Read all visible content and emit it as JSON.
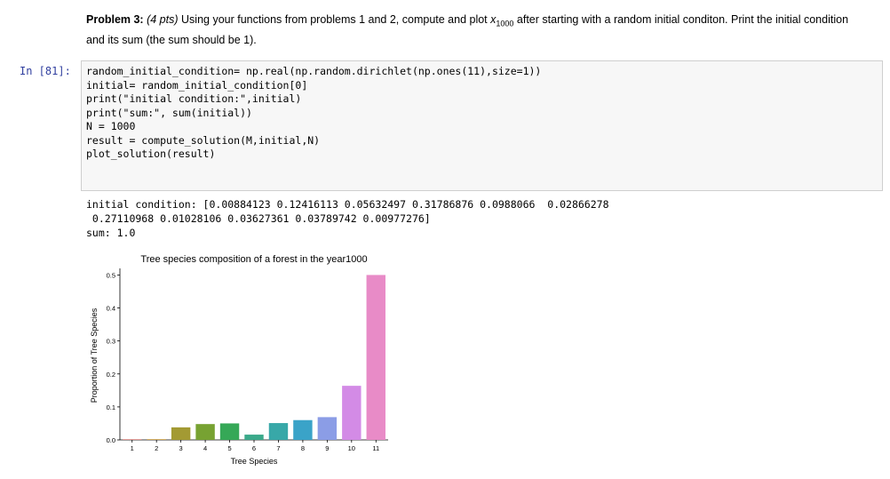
{
  "markdown": {
    "problem_label": "Problem 3:",
    "points": "(4 pts)",
    "text_before_vec": "Using your functions from problems 1 and 2, compute and plot",
    "vec_symbol": "x",
    "vec_subscript": "1000",
    "text_after_vec": "after starting with a random initial conditon. Print the initial condition and its sum (the sum should be 1)."
  },
  "cell": {
    "prompt": "In [81]:"
  },
  "code_lines": [
    "random_initial_condition= np.real(np.random.dirichlet(np.ones(11),size=1))",
    "initial= random_initial_condition[0]",
    "print(\"initial condition:\",initial)",
    "print(\"sum:\", sum(initial))",
    "N = 1000",
    "result = compute_solution(M,initial,N)",
    "plot_solution(result)"
  ],
  "output_lines": [
    "initial condition: [0.00884123 0.12416113 0.05632497 0.31786876 0.0988066  0.02866278",
    " 0.27110968 0.01028106 0.03627361 0.03789742 0.00977276]",
    "sum: 1.0"
  ],
  "chart_data": {
    "type": "bar",
    "title": "Tree species composition of a forest in the year1000",
    "xlabel": "Tree Species",
    "ylabel": "Proportion of Tree Species",
    "categories": [
      "1",
      "2",
      "3",
      "4",
      "5",
      "6",
      "7",
      "8",
      "9",
      "10",
      "11"
    ],
    "values": [
      0.002,
      0.002,
      0.038,
      0.048,
      0.05,
      0.016,
      0.051,
      0.06,
      0.069,
      0.164,
      0.5
    ],
    "colors": [
      "#e0807a",
      "#c9962f",
      "#a39a33",
      "#77a232",
      "#36a857",
      "#3aa98a",
      "#38a8a8",
      "#3aa3c8",
      "#8b9de6",
      "#d38be6",
      "#e88bc7"
    ],
    "yticks": [
      "0.0",
      "0.1",
      "0.2",
      "0.3",
      "0.4",
      "0.5"
    ],
    "ylim": [
      0,
      0.52
    ],
    "grid": false
  }
}
